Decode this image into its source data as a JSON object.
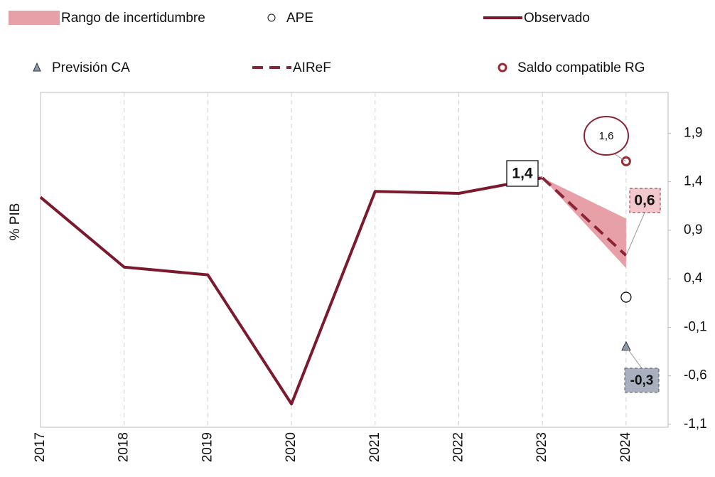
{
  "chart_data": {
    "type": "line",
    "y_label": "% PIB",
    "categories": [
      "2017",
      "2018",
      "2019",
      "2020",
      "2021",
      "2022",
      "2023",
      "2024"
    ],
    "ylim": [
      -1.13,
      2.32
    ],
    "yticks": [
      {
        "value": 1.9,
        "label": "1,9"
      },
      {
        "value": 1.4,
        "label": "1,4"
      },
      {
        "value": 0.9,
        "label": "0,9"
      },
      {
        "value": 0.4,
        "label": "0,4"
      },
      {
        "value": -0.1,
        "label": "-0,1"
      },
      {
        "value": -0.6,
        "label": "-0,6"
      },
      {
        "value": -1.1,
        "label": "-1,1"
      }
    ],
    "grid": true,
    "series": [
      {
        "name": "Observado",
        "kind": "line",
        "color": "#7b1a2e",
        "values": [
          1.24,
          0.52,
          0.44,
          -0.89,
          1.3,
          1.28,
          1.44,
          null
        ],
        "value_labels": [
          null,
          null,
          null,
          null,
          null,
          null,
          "1,4",
          null
        ]
      },
      {
        "name": "AIReF",
        "kind": "dashed",
        "color": "#8b2535",
        "values": [
          null,
          null,
          null,
          null,
          null,
          null,
          1.44,
          0.64
        ],
        "value_labels": [
          null,
          null,
          null,
          null,
          null,
          null,
          null,
          "0,6"
        ]
      },
      {
        "name": "Rango de incertidumbre",
        "kind": "band",
        "color": "#e8a0a8",
        "lower": [
          null,
          null,
          null,
          null,
          null,
          null,
          1.44,
          0.51
        ],
        "upper": [
          null,
          null,
          null,
          null,
          null,
          null,
          1.44,
          1.02
        ]
      },
      {
        "name": "APE",
        "kind": "circle",
        "color": "#ffffff",
        "values": [
          null,
          null,
          null,
          null,
          null,
          null,
          null,
          0.21
        ]
      },
      {
        "name": "Previsión CA",
        "kind": "triangle",
        "color": "#8a9ab0",
        "values": [
          null,
          null,
          null,
          null,
          null,
          null,
          null,
          -0.3
        ],
        "value_labels": [
          null,
          null,
          null,
          null,
          null,
          null,
          null,
          "-0,3"
        ]
      },
      {
        "name": "Saldo compatible RG",
        "kind": "ring",
        "color": "#9b2a35",
        "values": [
          null,
          null,
          null,
          null,
          null,
          null,
          null,
          1.61
        ],
        "value_labels": [
          null,
          null,
          null,
          null,
          null,
          null,
          null,
          "1,6"
        ]
      }
    ]
  }
}
